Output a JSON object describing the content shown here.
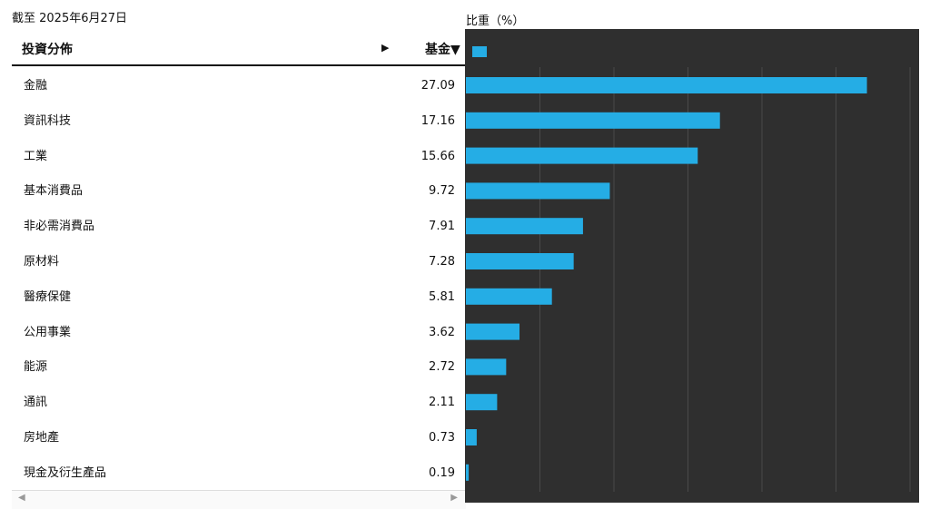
{
  "as_of": "截至 2025年6月27日",
  "header": {
    "name": "投資分佈",
    "expand_arrow": "▶",
    "fund": "基金▼"
  },
  "scroll": {
    "left": "◀",
    "right": "▶"
  },
  "colors": {
    "bar": "#25ade5",
    "chart_bg": "#2f2f2f",
    "grid": "#4a4a4a"
  },
  "rows": [
    {
      "label": "金融",
      "value": "27.09"
    },
    {
      "label": "資訊科技",
      "value": "17.16"
    },
    {
      "label": "工業",
      "value": "15.66"
    },
    {
      "label": "基本消費品",
      "value": "9.72"
    },
    {
      "label": "非必需消費品",
      "value": "7.91"
    },
    {
      "label": "原材料",
      "value": "7.28"
    },
    {
      "label": "醫療保健",
      "value": "5.81"
    },
    {
      "label": "公用事業",
      "value": "3.62"
    },
    {
      "label": "能源",
      "value": "2.72"
    },
    {
      "label": "通訊",
      "value": "2.11"
    },
    {
      "label": "房地產",
      "value": "0.73"
    },
    {
      "label": "現金及衍生產品",
      "value": "0.19"
    }
  ],
  "chart_data": {
    "type": "bar",
    "orientation": "horizontal",
    "title": "",
    "ylabel": "比重（%）",
    "categories": [
      "金融",
      "資訊科技",
      "工業",
      "基本消費品",
      "非必需消費品",
      "原材料",
      "醫療保健",
      "公用事業",
      "能源",
      "通訊",
      "房地產",
      "現金及衍生產品"
    ],
    "series": [
      {
        "values": [
          27.09,
          17.16,
          15.66,
          9.72,
          7.91,
          7.28,
          5.81,
          3.62,
          2.72,
          2.11,
          0.73,
          0.19
        ]
      }
    ],
    "xlim": [
      0,
      30
    ],
    "grid_lines": [
      5,
      10,
      15,
      20,
      25,
      30
    ],
    "grid": true,
    "legend": "top-left"
  }
}
